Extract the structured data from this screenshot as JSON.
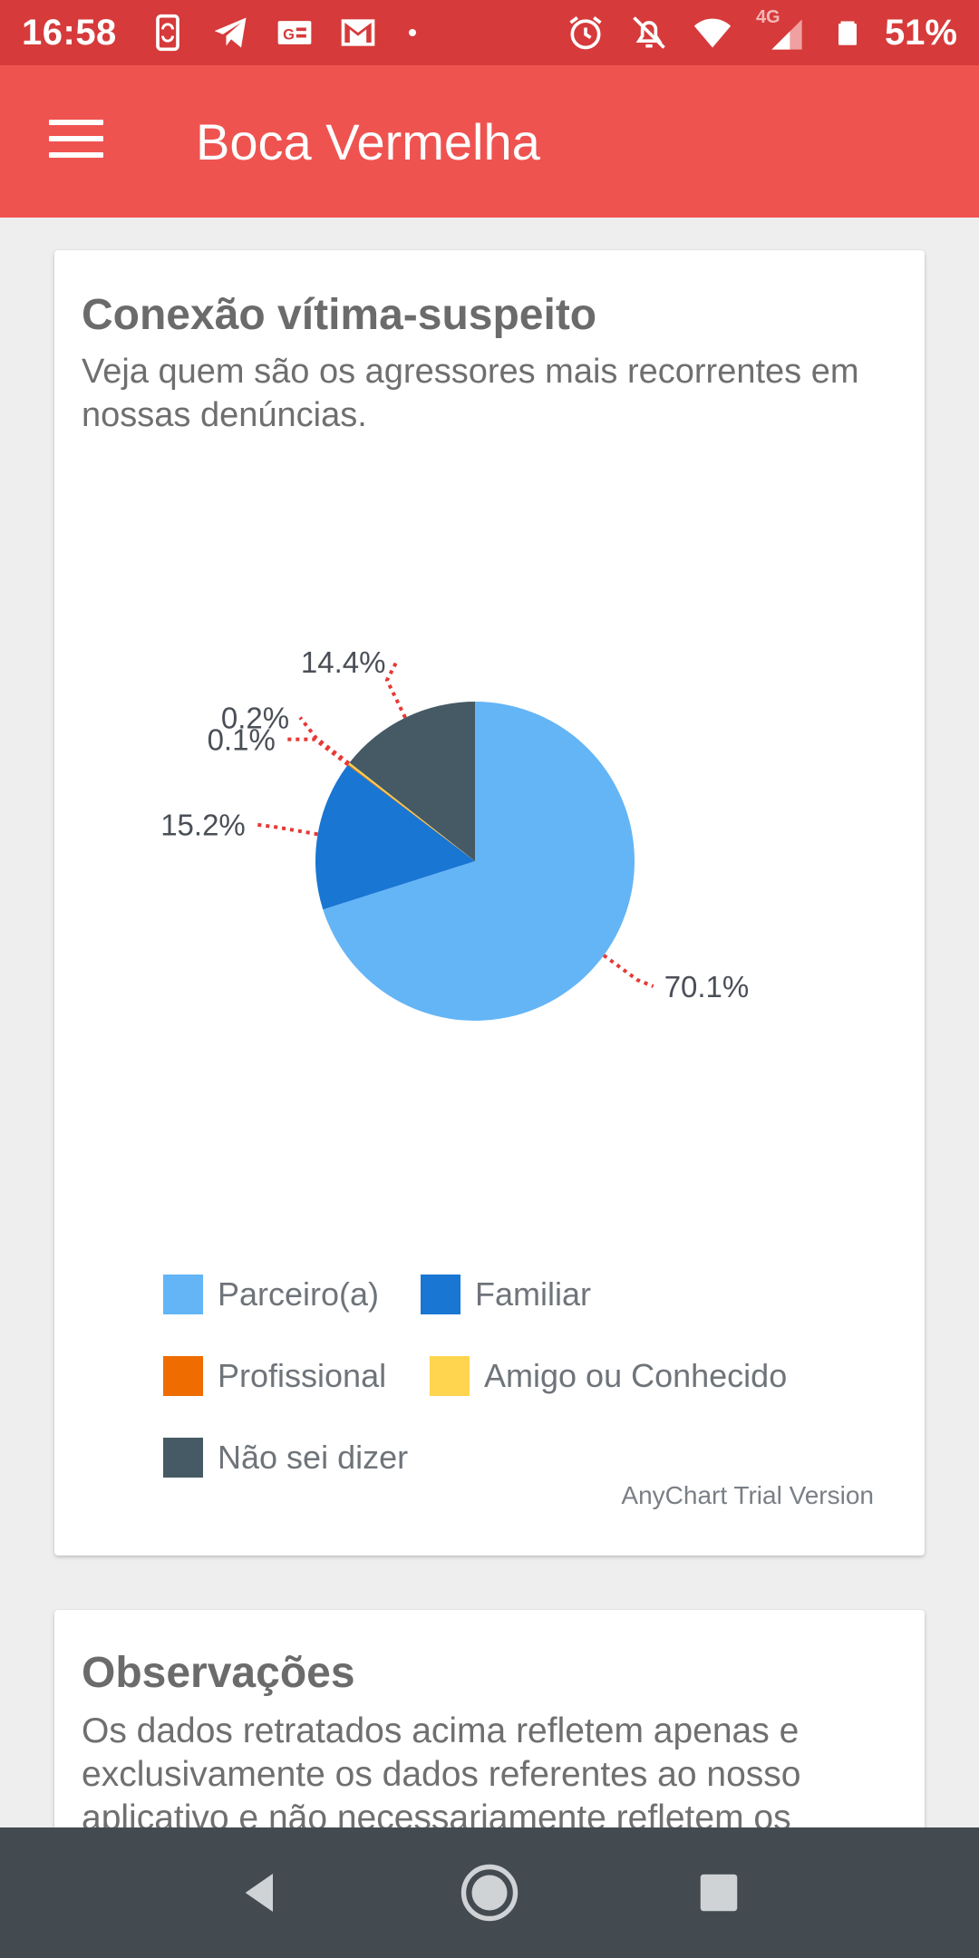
{
  "status_bar": {
    "time": "16:58",
    "network": "4G",
    "battery": "51%",
    "icons": [
      "phone-sync-icon",
      "telegram-icon",
      "news-icon",
      "gmail-icon",
      "dot-icon",
      "alarm-icon",
      "notifications-off-icon",
      "wifi-icon",
      "signal-icon",
      "battery-icon"
    ]
  },
  "app_bar": {
    "title": "Boca Vermelha",
    "menu_icon": "hamburger-menu-icon"
  },
  "chart_card": {
    "title": "Conexão vítima-suspeito",
    "subtitle": "Veja quem são os agressores mais recorrentes em nossas denúncias.",
    "watermark": "AnyChart Trial Version"
  },
  "chart_data": {
    "type": "pie",
    "categories": [
      "Parceiro(a)",
      "Familiar",
      "Profissional",
      "Amigo ou Conhecido",
      "Não sei dizer"
    ],
    "values": [
      70.1,
      15.2,
      0.1,
      0.2,
      14.4
    ],
    "labels": [
      "70.1%",
      "15.2%",
      "0.1%",
      "0.2%",
      "14.4%"
    ],
    "colors": [
      "#64b5f6",
      "#1976d2",
      "#ef6c00",
      "#ffd54f",
      "#455a64"
    ],
    "legend_position": "bottom"
  },
  "observations_card": {
    "title": "Observações",
    "text": "Os dados retratados acima refletem apenas e exclusivamente os dados referentes ao nosso aplicativo e não necessariamente refletem os"
  },
  "nav_bar": {
    "buttons": [
      "back-icon",
      "home-icon",
      "recents-icon"
    ]
  },
  "colors": {
    "status_bar": "#d63a3a",
    "app_bar": "#ef5350",
    "background": "#eeeeee",
    "leader_line": "#e53935"
  }
}
